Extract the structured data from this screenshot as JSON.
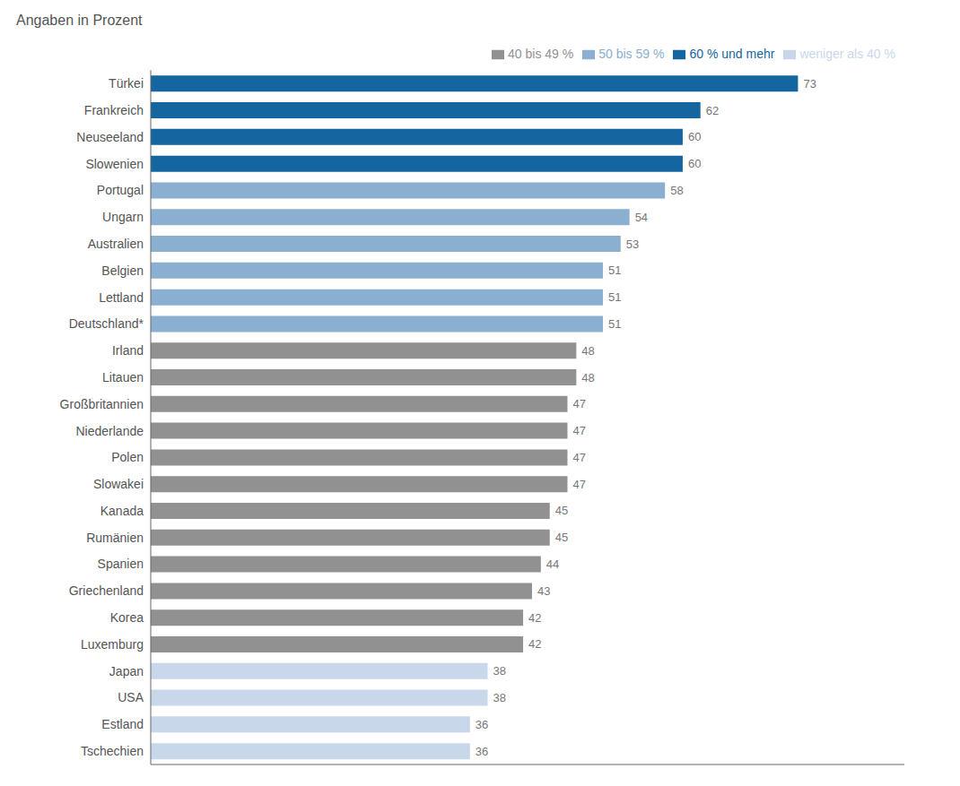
{
  "chart_data": {
    "type": "bar",
    "orientation": "horizontal",
    "title": "Angaben in Prozent",
    "categories": [
      "Türkei",
      "Frankreich",
      "Neuseeland",
      "Slowenien",
      "Portugal",
      "Ungarn",
      "Australien",
      "Belgien",
      "Lettland",
      "Deutschland*",
      "Irland",
      "Litauen",
      "Großbritannien",
      "Niederlande",
      "Polen",
      "Slowakei",
      "Kanada",
      "Rumänien",
      "Spanien",
      "Griechenland",
      "Korea",
      "Luxemburg",
      "Japan",
      "USA",
      "Estland",
      "Tschechien"
    ],
    "series": [
      {
        "name": "60 % und mehr",
        "color": "#1565a0",
        "values": [
          73,
          62,
          60,
          60,
          null,
          null,
          null,
          null,
          null,
          null,
          null,
          null,
          null,
          null,
          null,
          null,
          null,
          null,
          null,
          null,
          null,
          null,
          null,
          null,
          null,
          null
        ]
      },
      {
        "name": "50 bis 59 %",
        "color": "#8aafd0",
        "values": [
          null,
          null,
          null,
          null,
          58,
          54,
          53,
          51,
          51,
          51,
          null,
          null,
          null,
          null,
          null,
          null,
          null,
          null,
          null,
          null,
          null,
          null,
          null,
          null,
          null,
          null
        ]
      },
      {
        "name": "40 bis 49 %",
        "color": "#919191",
        "values": [
          null,
          null,
          null,
          null,
          null,
          null,
          null,
          null,
          null,
          null,
          48,
          48,
          47,
          47,
          47,
          47,
          45,
          45,
          44,
          43,
          42,
          42,
          null,
          null,
          null,
          null
        ]
      },
      {
        "name": "weniger als 40 %",
        "color": "#c8d8ea",
        "values": [
          null,
          null,
          null,
          null,
          null,
          null,
          null,
          null,
          null,
          null,
          null,
          null,
          null,
          null,
          null,
          null,
          null,
          null,
          null,
          null,
          null,
          null,
          38,
          38,
          36,
          36
        ]
      }
    ],
    "stacked": true,
    "xlim": [
      0,
      85
    ],
    "tick_labels": "y",
    "data_labels": true,
    "legend": "top",
    "grid": false
  }
}
